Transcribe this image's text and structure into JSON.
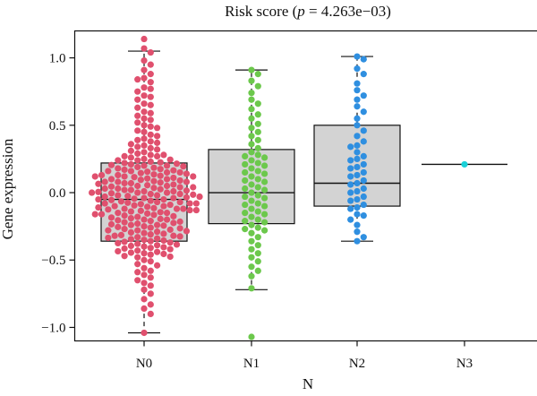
{
  "chart_data": {
    "type": "boxplot-beeswarm",
    "title_prefix": "Risk score (",
    "title_p": "p",
    "title_suffix": " = 4.263e−03)",
    "xlabel": "N",
    "ylabel": "Gene expression",
    "categories": [
      "N0",
      "N1",
      "N2",
      "N3"
    ],
    "ylim": [
      -1.1,
      1.2
    ],
    "yticks": [
      -1.0,
      -0.5,
      0.0,
      0.5,
      1.0
    ],
    "ytick_labels": [
      "−1.0",
      "−0.5",
      "0.0",
      "0.5",
      "1.0"
    ],
    "box_fill": "#d3d3d3",
    "groups": [
      {
        "name": "N0",
        "color": "#e0506e",
        "q1": -0.36,
        "median": -0.05,
        "q3": 0.22,
        "whisker_low": -1.04,
        "whisker_high": 1.05,
        "points": [
          1.14,
          1.07,
          1.04,
          0.98,
          0.95,
          0.91,
          0.88,
          0.85,
          0.84,
          0.82,
          0.78,
          0.77,
          0.75,
          0.72,
          0.71,
          0.69,
          0.66,
          0.65,
          0.63,
          0.6,
          0.59,
          0.57,
          0.55,
          0.54,
          0.52,
          0.5,
          0.49,
          0.48,
          0.46,
          0.45,
          0.43,
          0.42,
          0.4,
          0.39,
          0.38,
          0.36,
          0.35,
          0.34,
          0.33,
          0.31,
          0.3,
          0.29,
          0.28,
          0.27,
          0.26,
          0.25,
          0.24,
          0.23,
          0.22,
          0.21,
          0.2,
          0.19,
          0.18,
          0.17,
          0.16,
          0.15,
          0.14,
          0.13,
          0.12,
          0.11,
          0.1,
          0.09,
          0.08,
          0.07,
          0.06,
          0.05,
          0.04,
          0.03,
          0.02,
          0.01,
          0.0,
          -0.01,
          -0.02,
          -0.03,
          -0.04,
          -0.05,
          -0.06,
          -0.07,
          -0.08,
          -0.09,
          -0.1,
          -0.11,
          -0.12,
          -0.13,
          -0.14,
          -0.15,
          -0.16,
          -0.17,
          -0.18,
          -0.19,
          -0.2,
          -0.21,
          -0.22,
          -0.23,
          -0.24,
          -0.25,
          -0.26,
          -0.27,
          -0.28,
          -0.29,
          -0.3,
          -0.31,
          -0.32,
          -0.33,
          -0.34,
          -0.35,
          -0.36,
          -0.37,
          -0.38,
          -0.39,
          -0.4,
          -0.41,
          -0.42,
          -0.43,
          -0.44,
          -0.45,
          -0.46,
          -0.47,
          -0.48,
          -0.5,
          -0.51,
          -0.53,
          -0.54,
          -0.56,
          -0.58,
          -0.59,
          -0.61,
          -0.63,
          -0.65,
          -0.67,
          -0.69,
          -0.72,
          -0.75,
          -0.79,
          -0.83,
          -0.86,
          -0.9,
          -1.04,
          0.205,
          0.185,
          0.165,
          0.145,
          0.125,
          0.105,
          0.085,
          0.065,
          0.045,
          0.025,
          0.005,
          -0.015,
          -0.035,
          -0.055,
          -0.075,
          -0.095,
          -0.115,
          -0.135,
          -0.155,
          -0.175,
          -0.195,
          -0.215,
          -0.235,
          -0.255,
          -0.275,
          -0.295,
          -0.315,
          -0.335,
          -0.355,
          -0.375,
          -0.395,
          -0.415,
          -0.435,
          -0.455,
          -0.475,
          0.215,
          0.175,
          0.135,
          0.095,
          0.055,
          0.015,
          -0.025,
          -0.065,
          -0.105,
          -0.145,
          -0.185,
          -0.225,
          -0.265,
          -0.305,
          -0.345,
          -0.385,
          0.27,
          0.245,
          0.225,
          0.195,
          0.155,
          0.115,
          0.075,
          0.035,
          -0.005,
          -0.045,
          -0.085,
          -0.125,
          -0.165,
          -0.205,
          -0.245,
          -0.285,
          -0.325,
          -0.365,
          -0.405,
          -0.445,
          0.37,
          0.32,
          0.28,
          0.24,
          0.2,
          0.16,
          0.12,
          0.08,
          0.04,
          0.0,
          -0.04,
          -0.08,
          -0.12,
          -0.16,
          -0.2,
          -0.24,
          -0.28,
          -0.32,
          0.0,
          0.05,
          -0.05,
          0.1,
          -0.1,
          0.15,
          -0.15,
          0.02,
          -0.02,
          0.07,
          -0.07,
          0.12,
          -0.12,
          0.03,
          -0.03,
          0.08,
          -0.08,
          0.13,
          -0.13,
          0.01,
          -0.01
        ]
      },
      {
        "name": "N1",
        "color": "#6cc84c",
        "q1": -0.23,
        "median": 0.0,
        "q3": 0.32,
        "whisker_low": -0.72,
        "whisker_high": 0.91,
        "points": [
          0.91,
          0.88,
          0.83,
          0.79,
          0.74,
          0.69,
          0.66,
          0.62,
          0.58,
          0.55,
          0.51,
          0.48,
          0.45,
          0.42,
          0.39,
          0.36,
          0.33,
          0.3,
          0.28,
          0.26,
          0.24,
          0.22,
          0.2,
          0.18,
          0.16,
          0.14,
          0.12,
          0.1,
          0.08,
          0.06,
          0.04,
          0.02,
          0.0,
          -0.02,
          -0.04,
          -0.06,
          -0.08,
          -0.1,
          -0.12,
          -0.14,
          -0.16,
          -0.18,
          -0.2,
          -0.22,
          -0.24,
          -0.26,
          -0.28,
          -0.3,
          -0.33,
          -0.36,
          -0.39,
          -0.42,
          -0.45,
          -0.48,
          -0.51,
          -0.55,
          -0.58,
          -0.62,
          -0.71,
          -1.07,
          0.27,
          0.21,
          0.15,
          0.09,
          0.03,
          -0.03,
          -0.09,
          -0.15,
          -0.21,
          -0.27
        ]
      },
      {
        "name": "N2",
        "color": "#2f8fe0",
        "q1": -0.1,
        "median": 0.07,
        "q3": 0.5,
        "whisker_low": -0.36,
        "whisker_high": 1.01,
        "points": [
          1.01,
          0.99,
          0.92,
          0.88,
          0.81,
          0.76,
          0.72,
          0.69,
          0.64,
          0.6,
          0.55,
          0.5,
          0.46,
          0.42,
          0.38,
          0.34,
          0.3,
          0.27,
          0.24,
          0.21,
          0.18,
          0.15,
          0.12,
          0.09,
          0.06,
          0.03,
          0.0,
          -0.03,
          -0.06,
          -0.09,
          -0.12,
          -0.16,
          -0.2,
          -0.24,
          -0.29,
          -0.33,
          -0.36,
          0.13,
          0.07,
          0.01,
          -0.05,
          -0.11,
          0.19,
          -0.17,
          0.25,
          0.35
        ]
      },
      {
        "name": "N3",
        "color": "#19d1d8",
        "q1": 0.21,
        "median": 0.21,
        "q3": 0.21,
        "whisker_low": 0.21,
        "whisker_high": 0.21,
        "points": [
          0.21
        ]
      }
    ]
  }
}
